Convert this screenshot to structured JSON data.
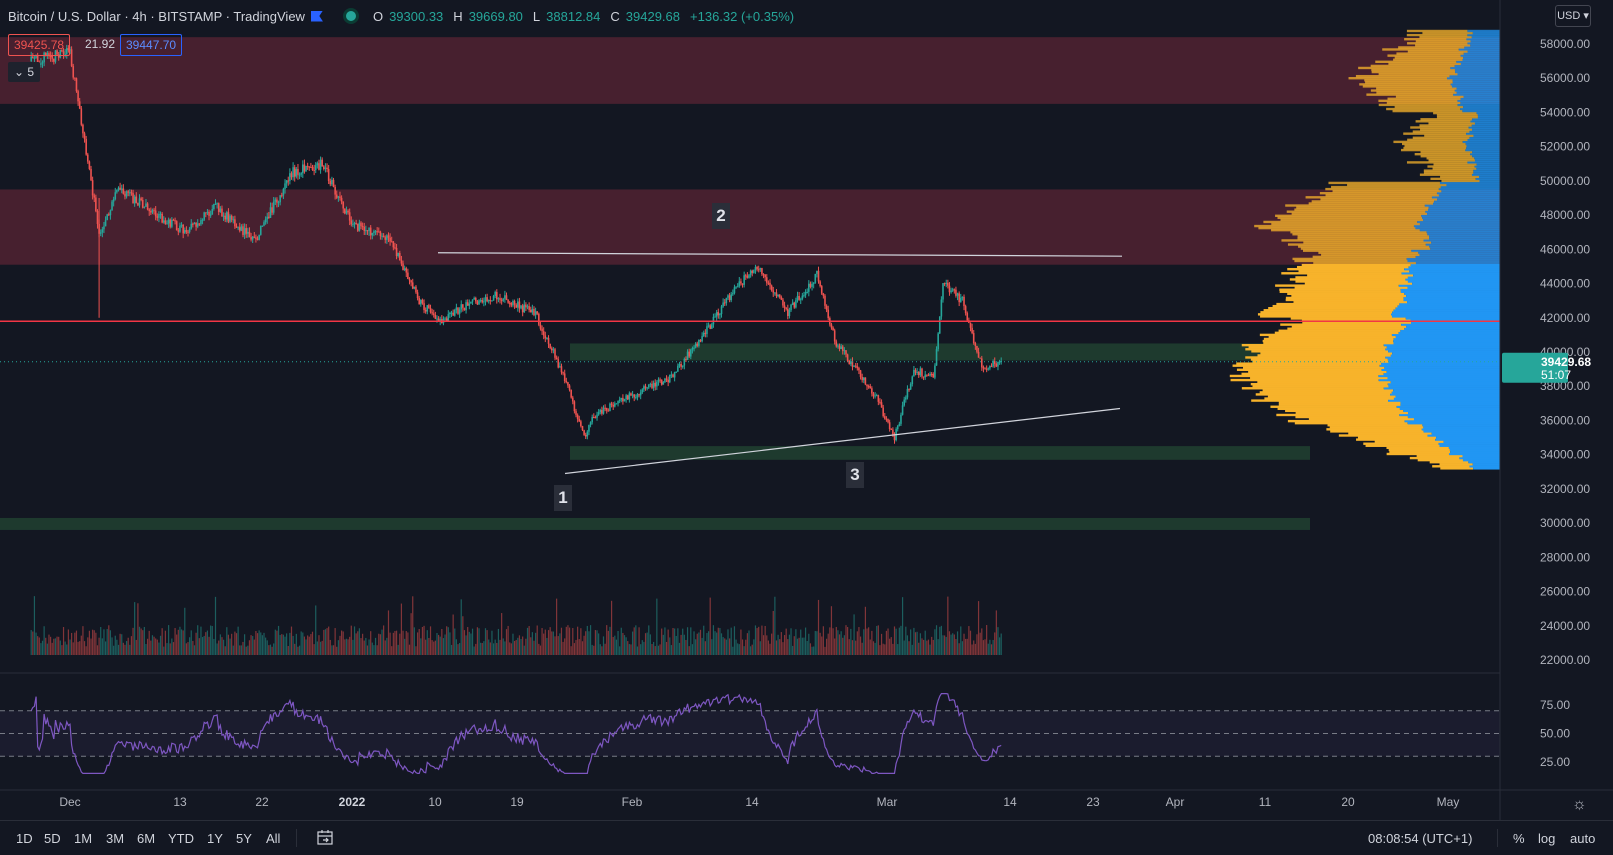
{
  "legend": {
    "title": "Bitcoin / U.S. Dollar · 4h · BITSTAMP · TradingView",
    "open_label": "O",
    "open": "39300.33",
    "high_label": "H",
    "high": "39669.80",
    "low_label": "L",
    "low": "38812.84",
    "close_label": "C",
    "close": "39429.68",
    "change": "+136.32 (+0.35%)"
  },
  "quote": {
    "bid": "39425.78",
    "spread": "21.92",
    "ask": "39447.70"
  },
  "collapse": {
    "label": "⌄ 5"
  },
  "currency": {
    "label": "USD ▾"
  },
  "price_axis": {
    "labels": [
      "58000.00",
      "56000.00",
      "54000.00",
      "52000.00",
      "50000.00",
      "48000.00",
      "46000.00",
      "44000.00",
      "42000.00",
      "40000.00",
      "38000.00",
      "36000.00",
      "34000.00",
      "32000.00",
      "30000.00",
      "28000.00",
      "26000.00",
      "24000.00",
      "22000.00"
    ],
    "top_clip": "6",
    "last_price": "39429.68",
    "countdown": "51:07"
  },
  "rsi_axis": {
    "labels": [
      "75.00",
      "50.00",
      "25.00"
    ]
  },
  "time_axis": {
    "labels": [
      "Dec",
      "13",
      "22",
      "2022",
      "10",
      "19",
      "Feb",
      "14",
      "Mar",
      "14",
      "23",
      "Apr",
      "11",
      "20",
      "May"
    ]
  },
  "annotations": [
    "1",
    "2",
    "3"
  ],
  "toolbar": {
    "timeframes": [
      "1D",
      "5D",
      "1M",
      "3M",
      "6M",
      "YTD",
      "1Y",
      "5Y",
      "All"
    ],
    "clock": "08:08:54 (UTC+1)",
    "pct": "%",
    "log": "log",
    "auto": "auto"
  },
  "colors": {
    "up": "#26a69a",
    "down": "#ef5350",
    "resistance_zone": "#4a2130",
    "support_zone": "#1e3a2e",
    "horizontal_line": "#f23645",
    "rsi_line": "#7e57c2",
    "volume_profile_up": "#f7b32b",
    "volume_profile_down": "#2196f3"
  },
  "chart_data": {
    "type": "candlestick",
    "symbol": "Bitcoin / U.S. Dollar",
    "interval": "4h",
    "exchange": "BITSTAMP",
    "y_range": [
      21000,
      60000
    ],
    "price_path": [
      [
        "2021-11-27",
        57000
      ],
      [
        "2021-12-01",
        57500
      ],
      [
        "2021-12-04",
        47000
      ],
      [
        "2021-12-06",
        49500
      ],
      [
        "2021-12-10",
        48000
      ],
      [
        "2021-12-13",
        47000
      ],
      [
        "2021-12-16",
        48500
      ],
      [
        "2021-12-20",
        46500
      ],
      [
        "2021-12-24",
        50500
      ],
      [
        "2021-12-27",
        51000
      ],
      [
        "2021-12-30",
        47500
      ],
      [
        "2022-01-03",
        46500
      ],
      [
        "2022-01-06",
        43000
      ],
      [
        "2022-01-08",
        41800
      ],
      [
        "2022-01-11",
        42800
      ],
      [
        "2022-01-14",
        43300
      ],
      [
        "2022-01-18",
        42200
      ],
      [
        "2022-01-21",
        38500
      ],
      [
        "2022-01-23",
        35000
      ],
      [
        "2022-01-24",
        36300
      ],
      [
        "2022-01-28",
        37500
      ],
      [
        "2022-02-01",
        38500
      ],
      [
        "2022-02-05",
        41600
      ],
      [
        "2022-02-08",
        44000
      ],
      [
        "2022-02-10",
        45000
      ],
      [
        "2022-02-13",
        42300
      ],
      [
        "2022-02-16",
        44500
      ],
      [
        "2022-02-18",
        40500
      ],
      [
        "2022-02-22",
        37500
      ],
      [
        "2022-02-24",
        35000
      ],
      [
        "2022-02-26",
        39000
      ],
      [
        "2022-02-28",
        38500
      ],
      [
        "2022-03-01",
        44000
      ],
      [
        "2022-03-03",
        43000
      ],
      [
        "2022-03-05",
        39100
      ],
      [
        "2022-03-07",
        39430
      ]
    ],
    "resistance_zones": [
      [
        54500,
        58400
      ],
      [
        45100,
        49500
      ]
    ],
    "support_zones": [
      [
        39500,
        40500
      ],
      [
        33700,
        34500
      ],
      [
        29600,
        30300
      ]
    ],
    "horizontal_line": 41800,
    "triangle_top": {
      "from": [
        "2022-01-11",
        45800
      ],
      "to": [
        "2022-04-04",
        45600
      ]
    },
    "triangle_bottom": {
      "from": [
        "2022-01-24",
        32900
      ],
      "to": [
        "2022-04-04",
        36700
      ]
    },
    "rsi": {
      "levels": [
        70,
        50,
        30
      ]
    }
  }
}
